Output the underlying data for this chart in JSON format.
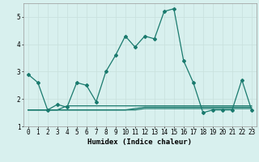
{
  "xlabel": "Humidex (Indice chaleur)",
  "x_values": [
    0,
    1,
    2,
    3,
    4,
    5,
    6,
    7,
    8,
    9,
    10,
    11,
    12,
    13,
    14,
    15,
    16,
    17,
    18,
    19,
    20,
    21,
    22,
    23
  ],
  "line1_y": [
    2.9,
    2.6,
    1.6,
    1.8,
    1.7,
    2.6,
    2.5,
    1.9,
    3.0,
    3.6,
    4.3,
    3.9,
    4.3,
    4.2,
    5.2,
    5.3,
    3.4,
    2.6,
    1.5,
    1.6,
    1.6,
    1.6,
    2.7,
    1.6
  ],
  "line2_y": [
    1.6,
    1.6,
    1.6,
    1.6,
    1.6,
    1.6,
    1.6,
    1.6,
    1.6,
    1.6,
    1.6,
    1.6,
    1.65,
    1.65,
    1.65,
    1.65,
    1.65,
    1.65,
    1.65,
    1.65,
    1.65,
    1.65,
    1.65,
    1.65
  ],
  "line3_y": [
    1.6,
    1.6,
    1.6,
    1.6,
    1.6,
    1.6,
    1.6,
    1.6,
    1.6,
    1.6,
    1.6,
    1.65,
    1.7,
    1.7,
    1.7,
    1.7,
    1.7,
    1.7,
    1.7,
    1.7,
    1.7,
    1.7,
    1.7,
    1.7
  ],
  "line4_y": [
    1.6,
    1.6,
    1.6,
    1.6,
    1.75,
    1.75,
    1.75,
    1.75,
    1.75,
    1.75,
    1.75,
    1.75,
    1.75,
    1.75,
    1.75,
    1.75,
    1.75,
    1.75,
    1.75,
    1.75,
    1.75,
    1.75,
    1.75,
    1.75
  ],
  "line_color": "#1a7a6e",
  "bg_color": "#d8f0ee",
  "grid_color": "#c8e0dc",
  "ylim": [
    1.0,
    5.5
  ],
  "yticks": [
    1,
    2,
    3,
    4,
    5
  ],
  "xtick_labels": [
    "0",
    "1",
    "2",
    "3",
    "4",
    "5",
    "6",
    "7",
    "8",
    "9",
    "10",
    "11",
    "12",
    "13",
    "14",
    "15",
    "16",
    "17",
    "18",
    "19",
    "20",
    "21",
    "22",
    "23"
  ],
  "xlabel_fontsize": 6.5,
  "tick_fontsize": 5.5,
  "marker": "D",
  "marker_size": 2.0,
  "line_width": 0.9
}
